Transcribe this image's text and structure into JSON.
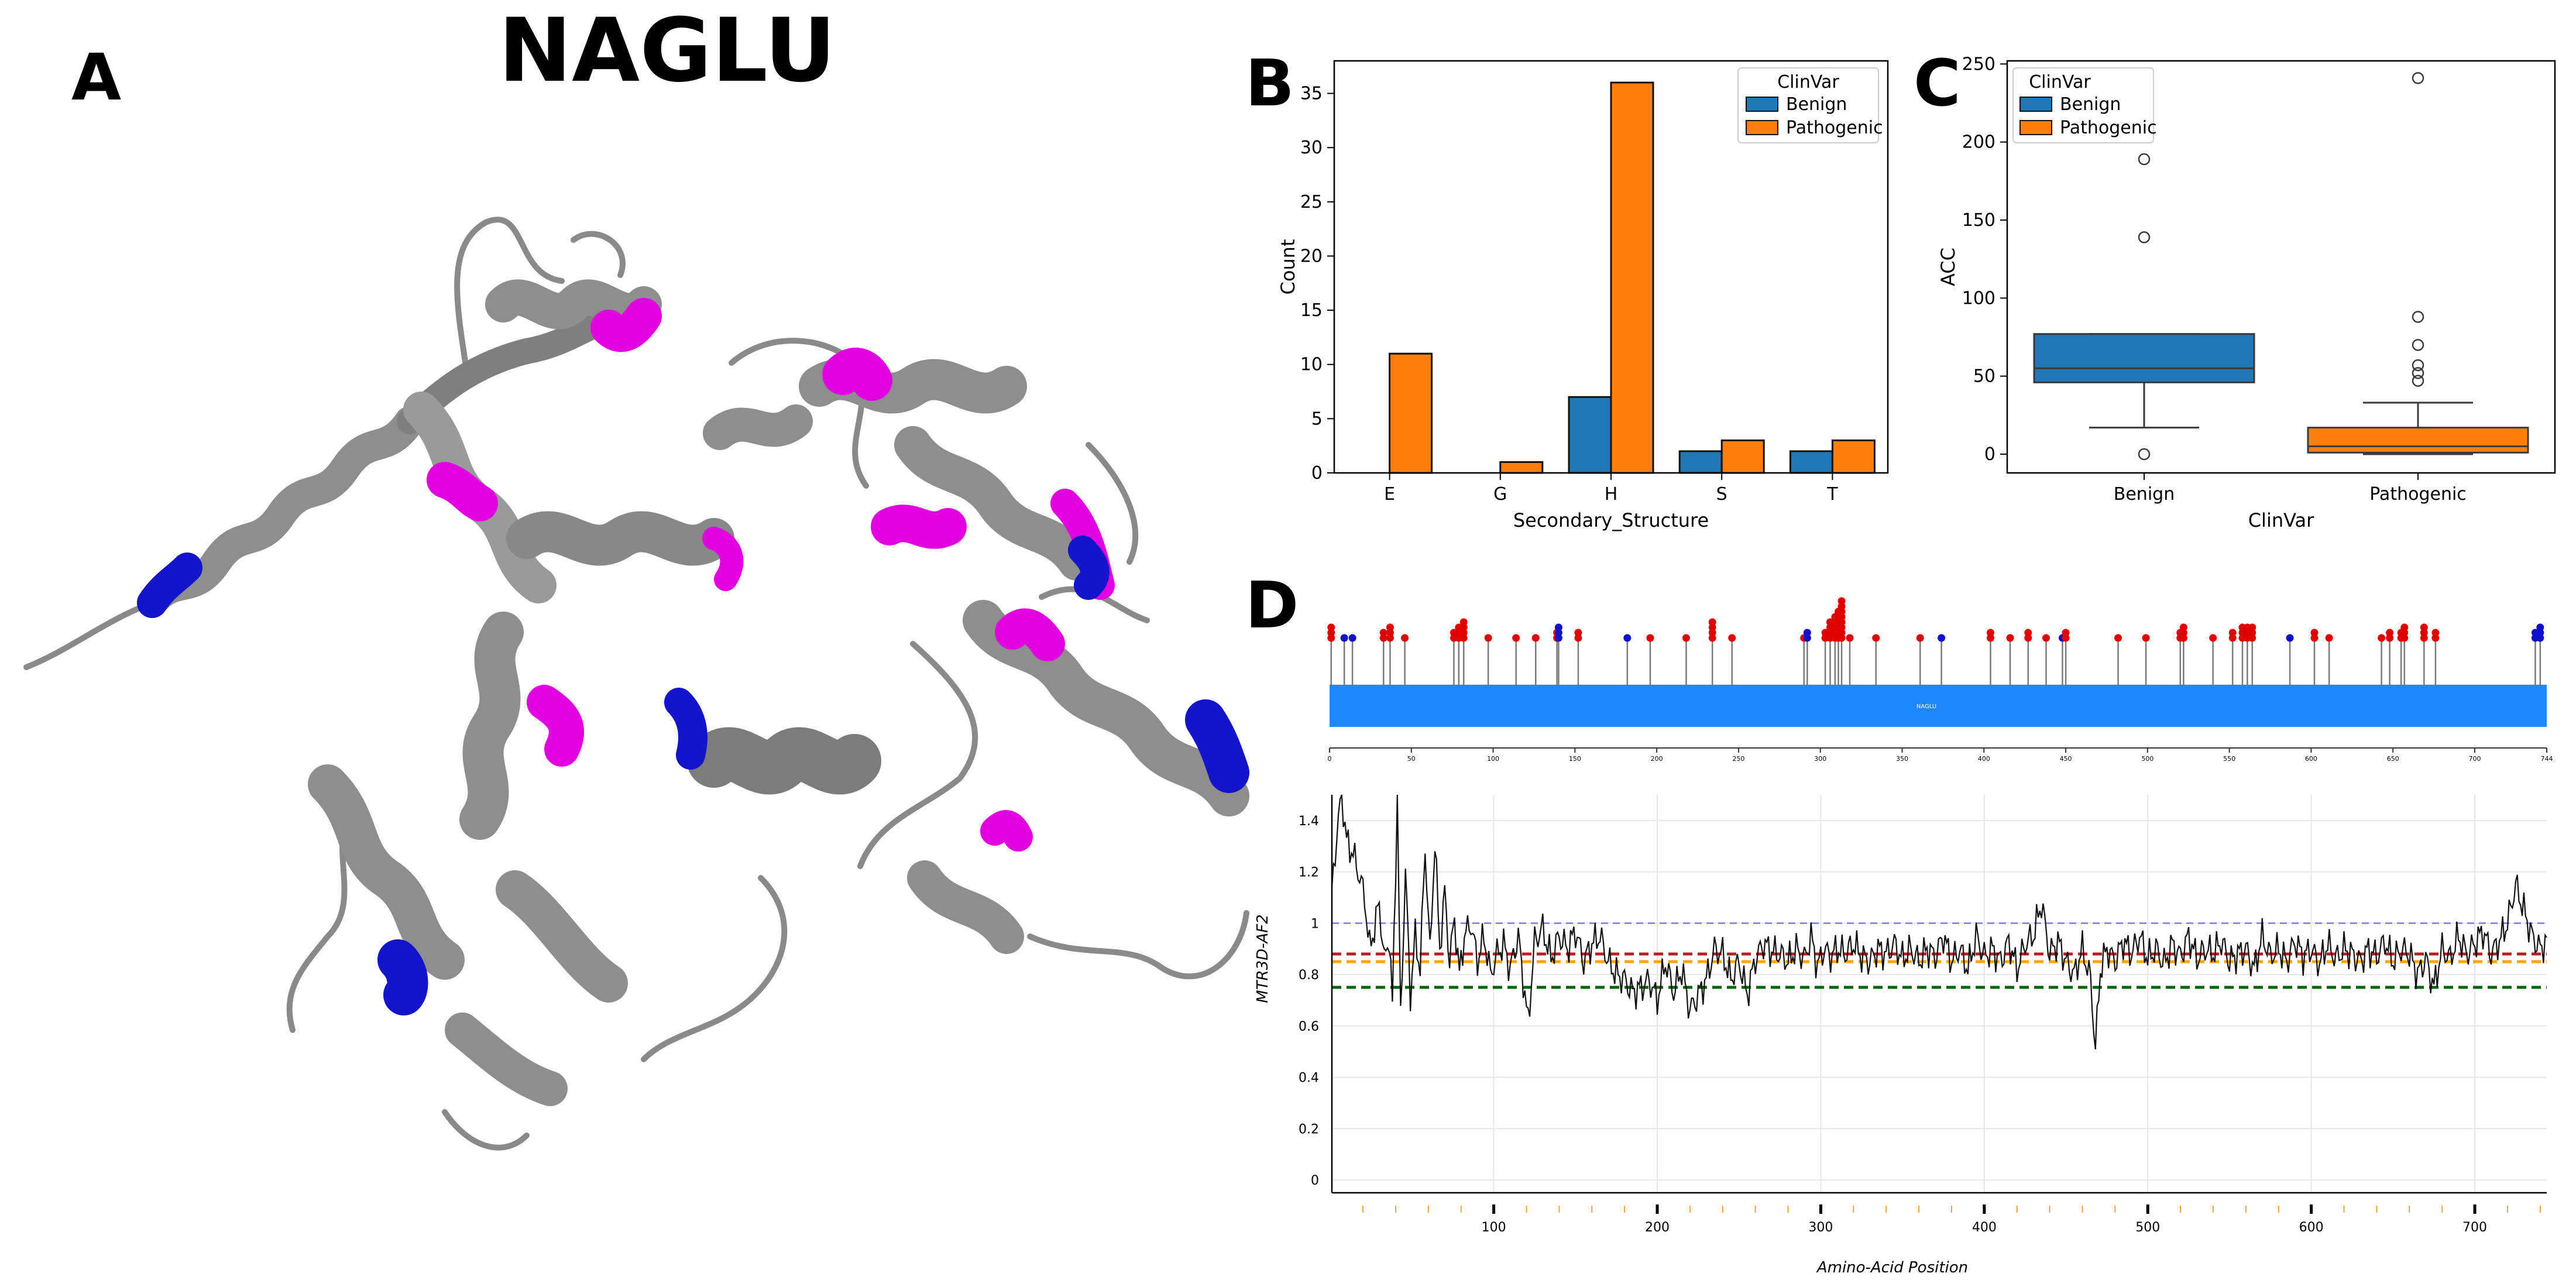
{
  "figure": {
    "panel_a_label": "A",
    "panel_b_label": "B",
    "panel_c_label": "C",
    "panel_d_label": "D",
    "title": "NAGLU",
    "structure_colors": {
      "ribbon": "#8e8e8e",
      "highlight_pathogenic": "#e000e0",
      "highlight_benign": "#1414c8"
    }
  },
  "chart_data": [
    {
      "id": "B",
      "type": "bar",
      "xlabel": "Secondary_Structure",
      "ylabel": "Count",
      "categories": [
        "E",
        "G",
        "H",
        "S",
        "T"
      ],
      "series": [
        {
          "name": "Benign",
          "color": "#1f77b4",
          "values": [
            0,
            0,
            7,
            2,
            2
          ]
        },
        {
          "name": "Pathogenic",
          "color": "#ff7f0e",
          "values": [
            11,
            1,
            36,
            3,
            3
          ]
        }
      ],
      "ylim": [
        0,
        38
      ],
      "yticks": [
        0,
        5,
        10,
        15,
        20,
        25,
        30,
        35
      ],
      "legend": {
        "title": "ClinVar",
        "position": "top-right"
      }
    },
    {
      "id": "C",
      "type": "box",
      "xlabel": "ClinVar",
      "ylabel": "ACC",
      "categories": [
        "Benign",
        "Pathogenic"
      ],
      "boxes": [
        {
          "name": "Benign",
          "color": "#1f77b4",
          "q1": 46,
          "median": 55,
          "q3": 77,
          "whisker_low": 17,
          "whisker_high": 77,
          "outliers": [
            0,
            139,
            189
          ]
        },
        {
          "name": "Pathogenic",
          "color": "#ff7f0e",
          "q1": 1,
          "median": 5,
          "q3": 17,
          "whisker_low": 0,
          "whisker_high": 33,
          "outliers": [
            47,
            52,
            57,
            70,
            88,
            241
          ]
        }
      ],
      "ylim": [
        -12,
        252
      ],
      "yticks": [
        0,
        50,
        100,
        150,
        200,
        250
      ],
      "legend": {
        "title": "ClinVar",
        "position": "top-left",
        "entries": [
          "Benign",
          "Pathogenic"
        ]
      }
    },
    {
      "id": "D-lollipop",
      "type": "lollipop",
      "protein_label": "NAGLU",
      "domain_color": "#1e88ff",
      "xlim": [
        0,
        744
      ],
      "xticks": [
        0,
        50,
        100,
        150,
        200,
        250,
        300,
        350,
        400,
        450,
        500,
        550,
        600,
        650,
        700,
        744
      ],
      "variants": [
        {
          "pos": 1,
          "count": 3,
          "cls": "P"
        },
        {
          "pos": 9,
          "count": 1,
          "cls": "B"
        },
        {
          "pos": 14,
          "count": 1,
          "cls": "B"
        },
        {
          "pos": 33,
          "count": 2,
          "cls": "P"
        },
        {
          "pos": 37,
          "count": 3,
          "cls": "P"
        },
        {
          "pos": 46,
          "count": 1,
          "cls": "P"
        },
        {
          "pos": 76,
          "count": 2,
          "cls": "P"
        },
        {
          "pos": 79,
          "count": 3,
          "cls": "P"
        },
        {
          "pos": 82,
          "count": 4,
          "cls": "P"
        },
        {
          "pos": 97,
          "count": 1,
          "cls": "P"
        },
        {
          "pos": 114,
          "count": 1,
          "cls": "P"
        },
        {
          "pos": 126,
          "count": 1,
          "cls": "P"
        },
        {
          "pos": 139,
          "count": 2,
          "cls": "P"
        },
        {
          "pos": 140,
          "count": 3,
          "cls": "B"
        },
        {
          "pos": 152,
          "count": 2,
          "cls": "P"
        },
        {
          "pos": 182,
          "count": 1,
          "cls": "B"
        },
        {
          "pos": 196,
          "count": 1,
          "cls": "P"
        },
        {
          "pos": 218,
          "count": 1,
          "cls": "P"
        },
        {
          "pos": 234,
          "count": 4,
          "cls": "P"
        },
        {
          "pos": 246,
          "count": 1,
          "cls": "P"
        },
        {
          "pos": 290,
          "count": 1,
          "cls": "P"
        },
        {
          "pos": 292,
          "count": 2,
          "cls": "B"
        },
        {
          "pos": 303,
          "count": 2,
          "cls": "P"
        },
        {
          "pos": 306,
          "count": 4,
          "cls": "P"
        },
        {
          "pos": 309,
          "count": 5,
          "cls": "P"
        },
        {
          "pos": 311,
          "count": 6,
          "cls": "P"
        },
        {
          "pos": 313,
          "count": 8,
          "cls": "P"
        },
        {
          "pos": 318,
          "count": 1,
          "cls": "P"
        },
        {
          "pos": 334,
          "count": 1,
          "cls": "P"
        },
        {
          "pos": 361,
          "count": 1,
          "cls": "P"
        },
        {
          "pos": 374,
          "count": 1,
          "cls": "B"
        },
        {
          "pos": 404,
          "count": 2,
          "cls": "P"
        },
        {
          "pos": 416,
          "count": 1,
          "cls": "P"
        },
        {
          "pos": 427,
          "count": 2,
          "cls": "P"
        },
        {
          "pos": 438,
          "count": 1,
          "cls": "P"
        },
        {
          "pos": 448,
          "count": 1,
          "cls": "B"
        },
        {
          "pos": 450,
          "count": 2,
          "cls": "P"
        },
        {
          "pos": 482,
          "count": 1,
          "cls": "P"
        },
        {
          "pos": 499,
          "count": 1,
          "cls": "P"
        },
        {
          "pos": 520,
          "count": 2,
          "cls": "P"
        },
        {
          "pos": 522,
          "count": 3,
          "cls": "P"
        },
        {
          "pos": 540,
          "count": 1,
          "cls": "P"
        },
        {
          "pos": 552,
          "count": 2,
          "cls": "P"
        },
        {
          "pos": 558,
          "count": 3,
          "cls": "P"
        },
        {
          "pos": 561,
          "count": 3,
          "cls": "P"
        },
        {
          "pos": 564,
          "count": 3,
          "cls": "P"
        },
        {
          "pos": 587,
          "count": 1,
          "cls": "B"
        },
        {
          "pos": 602,
          "count": 2,
          "cls": "P"
        },
        {
          "pos": 611,
          "count": 1,
          "cls": "P"
        },
        {
          "pos": 643,
          "count": 1,
          "cls": "P"
        },
        {
          "pos": 648,
          "count": 2,
          "cls": "P"
        },
        {
          "pos": 655,
          "count": 2,
          "cls": "P"
        },
        {
          "pos": 657,
          "count": 3,
          "cls": "P"
        },
        {
          "pos": 669,
          "count": 3,
          "cls": "P"
        },
        {
          "pos": 676,
          "count": 2,
          "cls": "P"
        },
        {
          "pos": 737,
          "count": 2,
          "cls": "B"
        },
        {
          "pos": 740,
          "count": 3,
          "cls": "B"
        }
      ]
    },
    {
      "id": "D-line",
      "type": "line",
      "xlabel": "Amino-Acid Position",
      "ylabel": "MTR3D-AF2",
      "xlim": [
        1,
        744
      ],
      "ylim": [
        -0.05,
        1.5
      ],
      "xticks": [
        100,
        200,
        300,
        400,
        500,
        600,
        700
      ],
      "yticks": [
        0,
        0.2,
        0.4,
        0.6,
        0.8,
        1,
        1.2,
        1.4
      ],
      "ref_lines": [
        {
          "y": 1.0,
          "color": "#7b7bdc",
          "style": "dashed-thin"
        },
        {
          "y": 0.88,
          "color": "#b22222",
          "style": "dashed"
        },
        {
          "y": 0.85,
          "color": "#ffa500",
          "style": "dashed"
        },
        {
          "y": 0.75,
          "color": "#006400",
          "style": "dashed"
        }
      ],
      "anchors": [
        [
          1,
          1.12
        ],
        [
          4,
          1.35
        ],
        [
          7,
          1.5
        ],
        [
          10,
          1.32
        ],
        [
          14,
          1.27
        ],
        [
          18,
          1.18
        ],
        [
          21,
          1.1
        ],
        [
          24,
          0.9
        ],
        [
          27,
          0.98
        ],
        [
          30,
          1.08
        ],
        [
          33,
          0.85
        ],
        [
          36,
          0.95
        ],
        [
          38,
          0.68
        ],
        [
          41,
          1.5
        ],
        [
          43,
          0.63
        ],
        [
          46,
          1.2
        ],
        [
          49,
          0.72
        ],
        [
          52,
          0.95
        ],
        [
          55,
          0.82
        ],
        [
          58,
          1.3
        ],
        [
          61,
          0.88
        ],
        [
          64,
          1.32
        ],
        [
          67,
          0.9
        ],
        [
          70,
          1.12
        ],
        [
          73,
          0.85
        ],
        [
          76,
          1.02
        ],
        [
          79,
          0.8
        ],
        [
          82,
          0.95
        ],
        [
          86,
          1.0
        ],
        [
          90,
          0.85
        ],
        [
          94,
          0.95
        ],
        [
          98,
          0.8
        ],
        [
          102,
          0.88
        ],
        [
          106,
          0.92
        ],
        [
          110,
          0.82
        ],
        [
          115,
          0.95
        ],
        [
          121,
          0.61
        ],
        [
          125,
          0.93
        ],
        [
          130,
          0.98
        ],
        [
          135,
          0.86
        ],
        [
          140,
          0.95
        ],
        [
          145,
          0.9
        ],
        [
          150,
          0.97
        ],
        [
          155,
          0.85
        ],
        [
          160,
          0.92
        ],
        [
          165,
          0.95
        ],
        [
          170,
          0.85
        ],
        [
          175,
          0.8
        ],
        [
          180,
          0.78
        ],
        [
          185,
          0.73
        ],
        [
          190,
          0.75
        ],
        [
          195,
          0.78
        ],
        [
          200,
          0.7
        ],
        [
          205,
          0.85
        ],
        [
          210,
          0.73
        ],
        [
          215,
          0.82
        ],
        [
          220,
          0.66
        ],
        [
          225,
          0.72
        ],
        [
          230,
          0.78
        ],
        [
          235,
          0.9
        ],
        [
          240,
          0.88
        ],
        [
          245,
          0.78
        ],
        [
          250,
          0.85
        ],
        [
          255,
          0.72
        ],
        [
          260,
          0.86
        ],
        [
          265,
          0.92
        ],
        [
          270,
          0.89
        ],
        [
          275,
          0.88
        ],
        [
          280,
          0.85
        ],
        [
          285,
          0.9
        ],
        [
          290,
          0.86
        ],
        [
          294,
          0.95
        ],
        [
          298,
          0.83
        ],
        [
          302,
          0.9
        ],
        [
          306,
          0.87
        ],
        [
          310,
          0.9
        ],
        [
          315,
          0.88
        ],
        [
          320,
          0.92
        ],
        [
          325,
          0.87
        ],
        [
          330,
          0.85
        ],
        [
          335,
          0.9
        ],
        [
          340,
          0.88
        ],
        [
          345,
          0.92
        ],
        [
          350,
          0.86
        ],
        [
          355,
          0.9
        ],
        [
          360,
          0.85
        ],
        [
          365,
          0.9
        ],
        [
          370,
          0.87
        ],
        [
          375,
          0.95
        ],
        [
          380,
          0.85
        ],
        [
          385,
          0.9
        ],
        [
          390,
          0.82
        ],
        [
          395,
          0.95
        ],
        [
          400,
          0.87
        ],
        [
          405,
          0.9
        ],
        [
          410,
          0.85
        ],
        [
          415,
          0.93
        ],
        [
          420,
          0.82
        ],
        [
          425,
          0.92
        ],
        [
          430,
          0.95
        ],
        [
          435,
          1.08
        ],
        [
          440,
          0.88
        ],
        [
          445,
          0.93
        ],
        [
          450,
          0.85
        ],
        [
          455,
          0.8
        ],
        [
          460,
          0.9
        ],
        [
          465,
          0.78
        ],
        [
          468,
          0.51
        ],
        [
          471,
          0.82
        ],
        [
          475,
          0.9
        ],
        [
          480,
          0.85
        ],
        [
          485,
          0.93
        ],
        [
          490,
          0.88
        ],
        [
          495,
          0.95
        ],
        [
          500,
          0.86
        ],
        [
          505,
          0.9
        ],
        [
          510,
          0.84
        ],
        [
          515,
          0.92
        ],
        [
          520,
          0.87
        ],
        [
          525,
          0.95
        ],
        [
          530,
          0.86
        ],
        [
          535,
          0.9
        ],
        [
          540,
          0.88
        ],
        [
          545,
          0.93
        ],
        [
          550,
          0.85
        ],
        [
          555,
          0.88
        ],
        [
          560,
          0.9
        ],
        [
          565,
          0.82
        ],
        [
          570,
          0.95
        ],
        [
          575,
          0.87
        ],
        [
          580,
          0.9
        ],
        [
          585,
          0.85
        ],
        [
          590,
          0.93
        ],
        [
          595,
          0.87
        ],
        [
          600,
          0.9
        ],
        [
          605,
          0.84
        ],
        [
          610,
          0.92
        ],
        [
          615,
          0.86
        ],
        [
          620,
          0.9
        ],
        [
          625,
          0.88
        ],
        [
          630,
          0.85
        ],
        [
          635,
          0.9
        ],
        [
          640,
          0.87
        ],
        [
          645,
          0.93
        ],
        [
          650,
          0.85
        ],
        [
          655,
          0.9
        ],
        [
          660,
          0.88
        ],
        [
          665,
          0.8
        ],
        [
          670,
          0.86
        ],
        [
          675,
          0.75
        ],
        [
          680,
          0.9
        ],
        [
          685,
          0.86
        ],
        [
          690,
          0.95
        ],
        [
          695,
          0.88
        ],
        [
          700,
          0.92
        ],
        [
          705,
          0.97
        ],
        [
          710,
          0.88
        ],
        [
          715,
          0.93
        ],
        [
          720,
          1.0
        ],
        [
          725,
          1.15
        ],
        [
          730,
          1.05
        ],
        [
          735,
          0.95
        ],
        [
          740,
          0.9
        ],
        [
          744,
          0.93
        ]
      ]
    }
  ]
}
